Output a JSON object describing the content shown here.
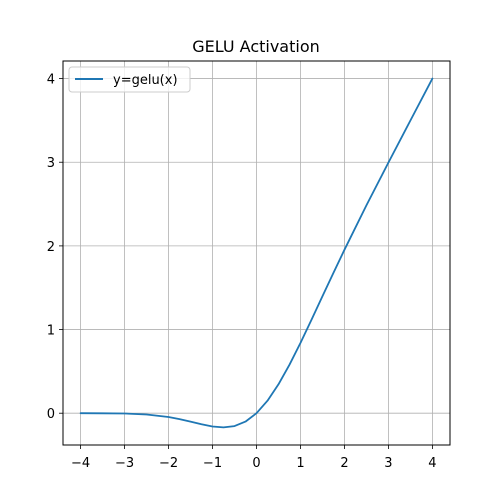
{
  "chart_data": {
    "type": "line",
    "title": "GELU Activation",
    "xlabel": "",
    "ylabel": "",
    "xlim": [
      -4.4,
      4.4
    ],
    "ylim": [
      -0.38,
      4.21
    ],
    "xticks": [
      -4,
      -3,
      -2,
      -1,
      0,
      1,
      2,
      3,
      4
    ],
    "yticks": [
      0,
      1,
      2,
      3,
      4
    ],
    "xtick_labels": [
      "−4",
      "−3",
      "−2",
      "−1",
      "0",
      "1",
      "2",
      "3",
      "4"
    ],
    "ytick_labels": [
      "0",
      "1",
      "2",
      "3",
      "4"
    ],
    "grid": true,
    "legend_position": "top-left",
    "series": [
      {
        "name": "y=gelu(x)",
        "color": "#1f77b4",
        "x": [
          -4.0,
          -3.5,
          -3.0,
          -2.5,
          -2.0,
          -1.75,
          -1.5,
          -1.25,
          -1.0,
          -0.75,
          -0.5,
          -0.25,
          0.0,
          0.25,
          0.5,
          0.75,
          1.0,
          1.25,
          1.5,
          1.75,
          2.0,
          2.5,
          3.0,
          3.5,
          4.0
        ],
        "y": [
          0.0,
          -0.001,
          -0.004,
          -0.016,
          -0.045,
          -0.07,
          -0.1,
          -0.132,
          -0.159,
          -0.17,
          -0.154,
          -0.1,
          0.0,
          0.15,
          0.346,
          0.58,
          0.841,
          1.118,
          1.4,
          1.68,
          1.955,
          2.484,
          2.996,
          3.499,
          4.0
        ]
      }
    ]
  }
}
